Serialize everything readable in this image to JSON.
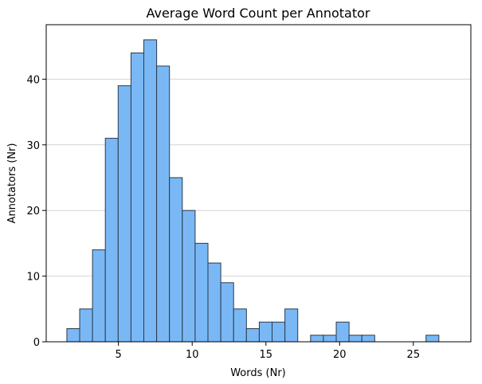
{
  "chart_data": {
    "type": "bar",
    "subtype": "histogram",
    "title": "Average Word Count per Annotator",
    "xlabel": "Words (Nr)",
    "ylabel": "Annotators (Nr)",
    "xlim": [
      0.1,
      28.9
    ],
    "ylim": [
      0,
      48.3
    ],
    "xticks": [
      5,
      10,
      15,
      20,
      25
    ],
    "yticks": [
      0,
      10,
      20,
      30,
      40
    ],
    "grid": "horizontal",
    "bar_color": "#7ab8f5",
    "edge_color": "#2b3a4a",
    "bin_start": 1.5,
    "bin_width": 0.87,
    "values": [
      2,
      5,
      14,
      31,
      39,
      44,
      46,
      42,
      25,
      20,
      15,
      12,
      9,
      5,
      2,
      3,
      3,
      5,
      0,
      1,
      1,
      3,
      1,
      1,
      0,
      0,
      0,
      0,
      1
    ]
  }
}
